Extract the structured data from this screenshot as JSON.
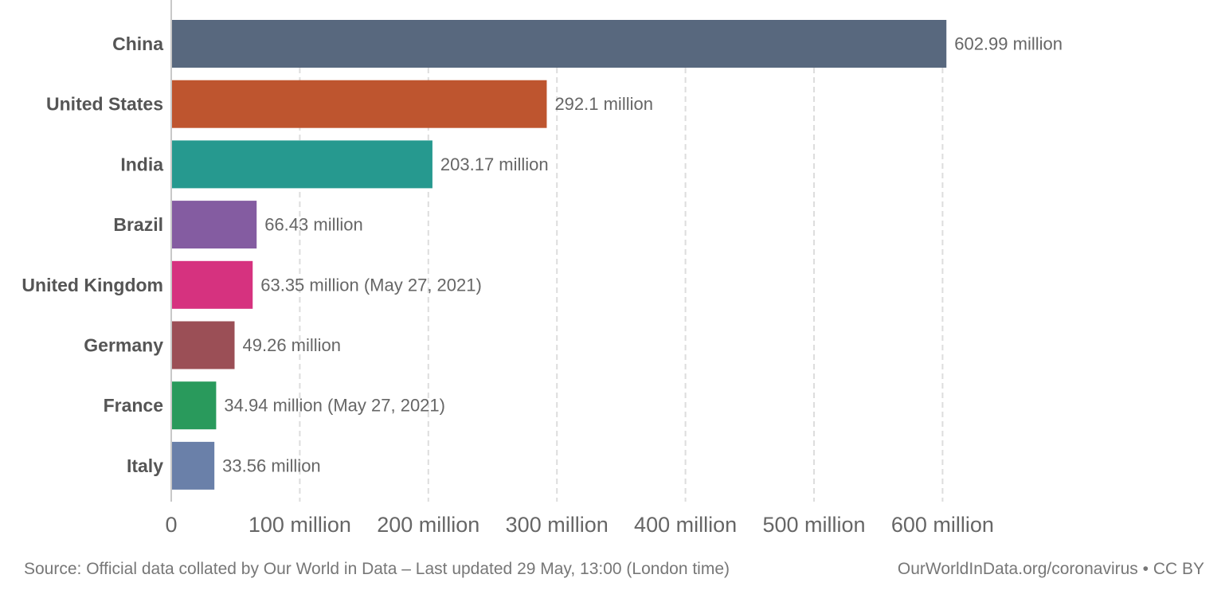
{
  "chart_data": {
    "type": "bar",
    "orientation": "horizontal",
    "categories": [
      "China",
      "United States",
      "India",
      "Brazil",
      "United Kingdom",
      "Germany",
      "France",
      "Italy"
    ],
    "values": [
      602.99,
      292.1,
      203.17,
      66.43,
      63.35,
      49.26,
      34.94,
      33.56
    ],
    "value_labels": [
      "602.99 million",
      "292.1 million",
      "203.17 million",
      "66.43 million",
      "63.35 million (May 27, 2021)",
      "49.26 million",
      "34.94 million (May 27, 2021)",
      "33.56 million"
    ],
    "colors": [
      "#58687e",
      "#be552f",
      "#26998f",
      "#845ca1",
      "#d6327f",
      "#9b4f56",
      "#299a5c",
      "#6a80a9"
    ],
    "xlim": [
      0,
      600
    ],
    "x_ticks": [
      0,
      100,
      200,
      300,
      400,
      500,
      600
    ],
    "x_tick_labels": [
      "0",
      "100 million",
      "200 million",
      "300 million",
      "400 million",
      "500 million",
      "600 million"
    ],
    "grid": "vertical-dashed",
    "legend": "none"
  },
  "footer": {
    "source": "Source: Official data collated by Our World in Data – Last updated 29 May, 13:00 (London time)",
    "link": "OurWorldInData.org/coronavirus • CC BY"
  }
}
